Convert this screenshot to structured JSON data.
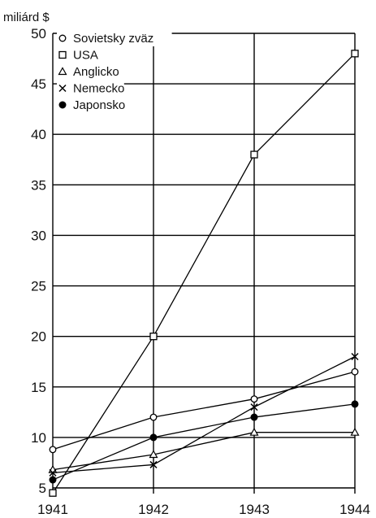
{
  "chart_data": {
    "type": "line",
    "title": "",
    "ylabel": "miliárd $",
    "xlabel": "",
    "x": [
      "1941",
      "1942",
      "1943",
      "1944"
    ],
    "ylim": [
      5,
      50
    ],
    "yticks": [
      5,
      10,
      15,
      20,
      25,
      30,
      35,
      40,
      45,
      50
    ],
    "grid": true,
    "legend_position": "top-left",
    "series": [
      {
        "name": "Sovietsky zväz",
        "marker": "circle-open",
        "values": [
          8.8,
          12.0,
          13.8,
          16.5
        ]
      },
      {
        "name": "USA",
        "marker": "square-open",
        "values": [
          4.5,
          20.0,
          38.0,
          48.0
        ]
      },
      {
        "name": "Anglicko",
        "marker": "triangle-open",
        "values": [
          6.8,
          8.3,
          10.5,
          10.5
        ]
      },
      {
        "name": "Nemecko",
        "marker": "cross",
        "values": [
          6.5,
          7.3,
          13.0,
          18.0
        ]
      },
      {
        "name": "Japonsko",
        "marker": "circle-filled",
        "values": [
          5.8,
          10.0,
          12.0,
          13.3
        ]
      }
    ]
  }
}
